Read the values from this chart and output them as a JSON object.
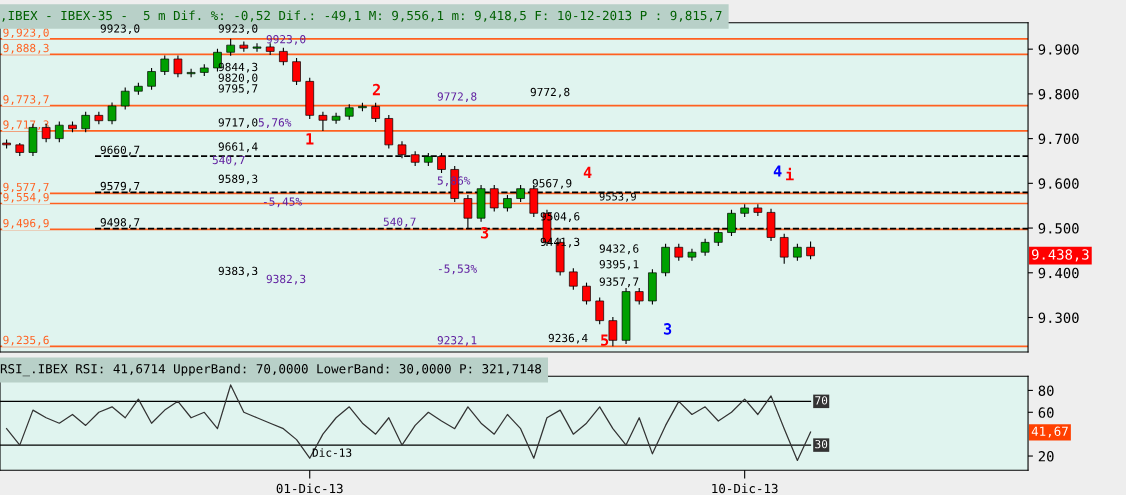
{
  "chart_data": [
    {
      "type": "candlestick",
      "title": ",IBEX - IBEX-35 -  5 m Dif. %: -0,52 Dif.: -49,1 M: 9,556,1 m: 9,418,5 F: 10-12-2013 P : 9,815,7",
      "categories": [
        null,
        null,
        null,
        null,
        null,
        null,
        null,
        null,
        null,
        null,
        null,
        null,
        null,
        null,
        null,
        null,
        null,
        null,
        null,
        null,
        null,
        null,
        null,
        null,
        null,
        null,
        null,
        null,
        null,
        null,
        null,
        null,
        null,
        null,
        null,
        null,
        null,
        null,
        null,
        null,
        null,
        null,
        null,
        null,
        null,
        null,
        null,
        null,
        null,
        null,
        null,
        null,
        null,
        null,
        null,
        null,
        null,
        null,
        null,
        null,
        null,
        null,
        null,
        null,
        null,
        null,
        null,
        null,
        null,
        null,
        null,
        null,
        null,
        null,
        null,
        null,
        null,
        null
      ],
      "ohlc": [
        [
          9690,
          9698,
          9678,
          9686
        ],
        [
          9686,
          9690,
          9661,
          9669
        ],
        [
          9669,
          9733,
          9661,
          9725
        ],
        [
          9725,
          9733,
          9692,
          9700
        ],
        [
          9700,
          9738,
          9692,
          9730
        ],
        [
          9730,
          9738,
          9714,
          9722
        ],
        [
          9722,
          9760,
          9714,
          9752
        ],
        [
          9752,
          9760,
          9732,
          9740
        ],
        [
          9740,
          9781,
          9732,
          9773
        ],
        [
          9773,
          9814,
          9765,
          9806
        ],
        [
          9806,
          9825,
          9798,
          9817
        ],
        [
          9817,
          9858,
          9809,
          9850
        ],
        [
          9850,
          9886,
          9842,
          9878
        ],
        [
          9878,
          9886,
          9837,
          9845
        ],
        [
          9845,
          9856,
          9837,
          9848
        ],
        [
          9848,
          9866,
          9840,
          9858
        ],
        [
          9858,
          9901,
          9850,
          9893
        ],
        [
          9893,
          9923,
          9885,
          9909
        ],
        [
          9909,
          9917,
          9894,
          9902
        ],
        [
          9902,
          9913,
          9894,
          9905
        ],
        [
          9905,
          9913,
          9887,
          9895
        ],
        [
          9895,
          9903,
          9864,
          9872
        ],
        [
          9872,
          9880,
          9820,
          9828
        ],
        [
          9828,
          9836,
          9744,
          9752
        ],
        [
          9752,
          9760,
          9717,
          9741
        ],
        [
          9741,
          9758,
          9733,
          9750
        ],
        [
          9750,
          9777,
          9742,
          9769
        ],
        [
          9769,
          9780,
          9761,
          9772
        ],
        [
          9772,
          9780,
          9737,
          9745
        ],
        [
          9745,
          9753,
          9678,
          9686
        ],
        [
          9686,
          9694,
          9656,
          9664
        ],
        [
          9664,
          9672,
          9639,
          9647
        ],
        [
          9647,
          9668,
          9639,
          9660
        ],
        [
          9660,
          9668,
          9623,
          9631
        ],
        [
          9631,
          9639,
          9558,
          9566
        ],
        [
          9566,
          9574,
          9499,
          9522
        ],
        [
          9522,
          9596,
          9514,
          9588
        ],
        [
          9588,
          9596,
          9537,
          9545
        ],
        [
          9545,
          9574,
          9537,
          9566
        ],
        [
          9566,
          9596,
          9558,
          9588
        ],
        [
          9588,
          9596,
          9525,
          9533
        ],
        [
          9533,
          9541,
          9460,
          9468
        ],
        [
          9468,
          9476,
          9394,
          9402
        ],
        [
          9402,
          9410,
          9362,
          9370
        ],
        [
          9370,
          9378,
          9329,
          9337
        ],
        [
          9337,
          9345,
          9285,
          9293
        ],
        [
          9293,
          9301,
          9236,
          9249
        ],
        [
          9249,
          9366,
          9241,
          9358
        ],
        [
          9358,
          9366,
          9329,
          9337
        ],
        [
          9337,
          9408,
          9329,
          9400
        ],
        [
          9400,
          9465,
          9392,
          9457
        ],
        [
          9457,
          9465,
          9427,
          9435
        ],
        [
          9435,
          9454,
          9427,
          9446
        ],
        [
          9446,
          9476,
          9438,
          9468
        ],
        [
          9468,
          9498,
          9460,
          9490
        ],
        [
          9490,
          9541,
          9482,
          9533
        ],
        [
          9533,
          9553,
          9525,
          9545
        ],
        [
          9545,
          9553,
          9527,
          9535
        ],
        [
          9535,
          9543,
          9471,
          9479
        ],
        [
          9479,
          9487,
          9420,
          9435
        ],
        [
          9435,
          9465,
          9427,
          9457
        ],
        [
          9457,
          9470,
          9430,
          9438
        ],
        null,
        null,
        null,
        null,
        null,
        null,
        null,
        null,
        null,
        null,
        null,
        null,
        null,
        null,
        null,
        null
      ],
      "ylim": [
        9223,
        9959
      ],
      "yticks": [
        {
          "value": 9300,
          "label": "9.300"
        },
        {
          "value": 9400,
          "label": "9.400"
        },
        {
          "value": 9500,
          "label": "9.500"
        },
        {
          "value": 9600,
          "label": "9.600"
        },
        {
          "value": 9700,
          "label": "9.700"
        },
        {
          "value": 9800,
          "label": "9.800"
        },
        {
          "value": 9900,
          "label": "9.900"
        }
      ],
      "tick_labels": "y",
      "ref_lines": [
        {
          "axis": "y",
          "value": 9923.0,
          "label": "9,923,0",
          "color": "#ff6020",
          "line_style": "solid"
        },
        {
          "axis": "y",
          "value": 9888.3,
          "label": "9,888,3",
          "color": "#ff6020",
          "line_style": "solid"
        },
        {
          "axis": "y",
          "value": 9773.7,
          "label": "9,773,7",
          "color": "#ff6020",
          "line_style": "solid"
        },
        {
          "axis": "y",
          "value": 9717.3,
          "label": "9,717,3",
          "color": "#ff6020",
          "line_style": "solid"
        },
        {
          "axis": "y",
          "value": 9577.7,
          "label": "9,577,7",
          "color": "#ff6020",
          "line_style": "solid"
        },
        {
          "axis": "y",
          "value": 9554.9,
          "label": "9,554,9",
          "color": "#ff6020",
          "line_style": "solid"
        },
        {
          "axis": "y",
          "value": 9496.9,
          "label": "9,496,9",
          "color": "#ff6020",
          "line_style": "solid"
        },
        {
          "axis": "y",
          "value": 9235.6,
          "label": "9,235,6",
          "color": "#ff6020",
          "line_style": "solid"
        },
        {
          "axis": "y",
          "value": 9660.7,
          "label": "9660,7",
          "color": "#000000",
          "line_style": "dashed"
        },
        {
          "axis": "y",
          "value": 9579.7,
          "label": "9579,7",
          "color": "#000000",
          "line_style": "dashed"
        },
        {
          "axis": "y",
          "value": 9498.7,
          "label": "9498,7",
          "color": "#000000",
          "line_style": "dashed"
        }
      ],
      "annotations": [
        "1",
        "2",
        "3",
        "4",
        "5",
        "3",
        "4",
        "i",
        "9923,0",
        "9923,0",
        "9923,0",
        "9844,3",
        "9820,0",
        "9795,7",
        "9717,0",
        "5,76%",
        "9661,4",
        "540,7",
        "9589,3",
        "-5,45%",
        "9383,3",
        "9382,3",
        "9772,8",
        "5,86%",
        "540,7",
        "-5,53%",
        "9232,1",
        "9772,8",
        "9567,9",
        "9553,9",
        "9504,6",
        "9441,3",
        "9432,6",
        "9395,1",
        "9357,7",
        "9236,4",
        "9.438,3"
      ]
    },
    {
      "type": "line",
      "title": "RSI_.IBEX RSI: 41,6714 UpperBand: 70,0000 LowerBand: 30,0000 P: 321,7148",
      "categories": [
        null,
        null,
        null,
        null,
        null,
        null,
        null,
        null,
        null,
        null,
        null,
        null,
        null,
        null,
        null,
        null,
        null,
        null,
        null,
        null,
        null,
        null,
        null,
        "01-Dic-13",
        null,
        null,
        null,
        null,
        null,
        null,
        null,
        null,
        null,
        null,
        null,
        null,
        null,
        null,
        null,
        null,
        null,
        null,
        null,
        null,
        null,
        null,
        null,
        null,
        null,
        null,
        null,
        null,
        null,
        null,
        null,
        null,
        "10-Dic-13",
        null,
        null,
        null,
        null,
        null,
        null,
        null,
        null,
        null,
        null,
        null,
        null,
        null,
        null,
        null,
        null,
        null,
        null,
        null,
        null,
        null
      ],
      "series": [
        {
          "color": "#333333",
          "values": [
            45,
            30,
            62,
            55,
            50,
            58,
            48,
            60,
            65,
            55,
            72,
            50,
            62,
            70,
            55,
            60,
            45,
            85,
            60,
            55,
            50,
            45,
            35,
            18,
            40,
            55,
            65,
            50,
            40,
            55,
            30,
            48,
            60,
            52,
            45,
            65,
            50,
            40,
            58,
            45,
            18,
            55,
            62,
            40,
            50,
            65,
            45,
            30,
            55,
            22,
            48,
            70,
            58,
            65,
            52,
            60,
            72,
            58,
            75,
            45,
            16,
            42,
            null,
            null,
            null,
            null,
            null,
            null,
            null,
            null,
            null,
            null,
            null,
            null,
            null,
            null,
            null,
            null
          ]
        }
      ],
      "ylim": [
        7,
        93
      ],
      "yticks": [
        20,
        60,
        80
      ],
      "ref_lines": [
        {
          "axis": "y",
          "value": 70,
          "label": "70",
          "color": "#000000",
          "line_style": "solid"
        },
        {
          "axis": "y",
          "value": 30,
          "label": "30",
          "color": "#000000",
          "line_style": "solid"
        }
      ],
      "annotations": [
        "Dic-13",
        "41,67"
      ]
    }
  ]
}
